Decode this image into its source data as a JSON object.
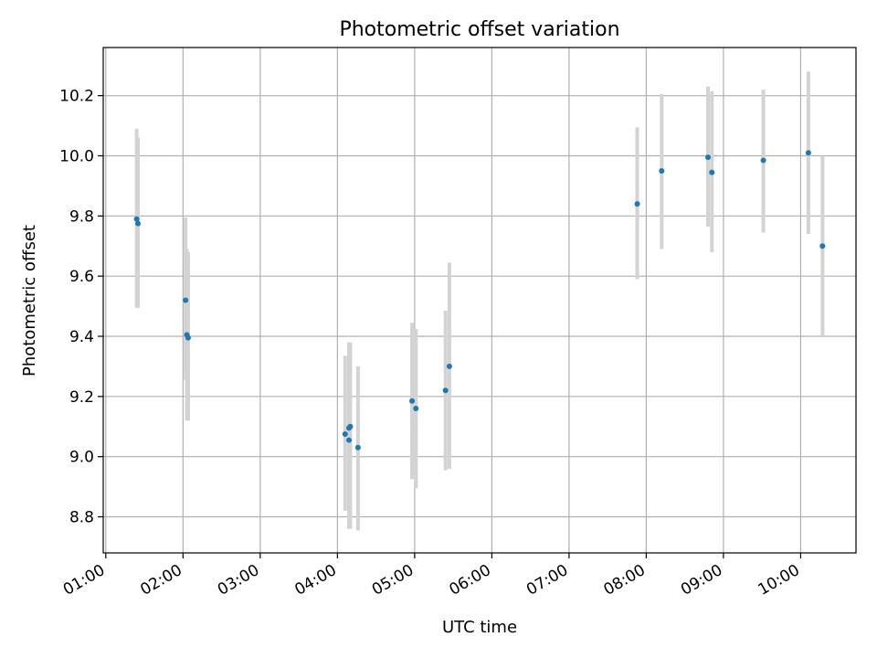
{
  "chart_data": {
    "type": "scatter",
    "title": "Photometric offset variation",
    "xlabel": "UTC time",
    "ylabel": "Photometric offset",
    "xlim": [
      "00:58",
      "10:43"
    ],
    "ylim": [
      8.68,
      10.36
    ],
    "x_ticks": [
      "01:00",
      "02:00",
      "03:00",
      "04:00",
      "05:00",
      "06:00",
      "07:00",
      "08:00",
      "09:00",
      "10:00"
    ],
    "y_ticks": [
      8.8,
      9.0,
      9.2,
      9.4,
      9.6,
      9.8,
      10.0,
      10.2
    ],
    "grid": true,
    "point_color": "#1f77b4",
    "errorbar_color": "#d3d3d3",
    "series": [
      {
        "x": [
          "01:24",
          "01:25",
          "02:02",
          "02:03",
          "02:04",
          "04:06",
          "04:09",
          "04:10",
          "04:09",
          "04:16",
          "04:58",
          "05:01",
          "05:24",
          "05:27",
          "07:53",
          "08:12",
          "08:48",
          "08:51",
          "09:31",
          "10:06",
          "10:17"
        ],
        "y": [
          9.79,
          9.775,
          9.52,
          9.405,
          9.395,
          9.075,
          9.095,
          9.1,
          9.055,
          9.03,
          9.185,
          9.16,
          9.22,
          9.3,
          9.84,
          9.95,
          9.995,
          9.945,
          9.985,
          10.01,
          9.7
        ],
        "yerr_low": [
          9.495,
          9.495,
          9.255,
          9.12,
          9.12,
          8.82,
          8.76,
          8.76,
          8.76,
          8.755,
          8.925,
          8.895,
          8.955,
          8.96,
          9.59,
          9.69,
          9.765,
          9.68,
          9.745,
          9.74,
          9.4
        ],
        "yerr_high": [
          10.09,
          10.06,
          9.795,
          9.69,
          9.68,
          9.335,
          9.38,
          9.38,
          9.38,
          9.3,
          9.445,
          9.425,
          9.485,
          9.645,
          10.095,
          10.205,
          10.23,
          10.215,
          10.22,
          10.28,
          10.0
        ]
      }
    ]
  }
}
